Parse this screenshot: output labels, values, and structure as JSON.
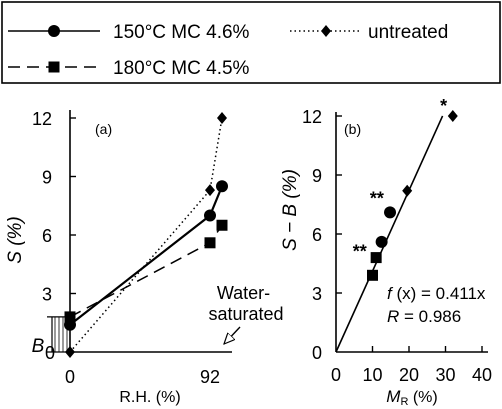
{
  "legend": {
    "items": [
      {
        "label": "150°C MC 4.6%",
        "line": "solid",
        "marker": "circle"
      },
      {
        "label": "180°C MC 4.5%",
        "line": "dashed",
        "marker": "square"
      },
      {
        "label": "untreated",
        "line": "dotted",
        "marker": "diamond"
      }
    ]
  },
  "chart_data": [
    {
      "type": "line",
      "panel_label": "(a)",
      "ylabel": "S (%)",
      "xlabel": "R.H. (%)",
      "x_ticks": [
        "0",
        "92"
      ],
      "y_ticks": [
        "0",
        "3",
        "6",
        "9",
        "12"
      ],
      "ylim": [
        0,
        12
      ],
      "grid": false,
      "series": [
        {
          "name": "150°C MC 4.6%",
          "style": "solid",
          "marker": "circle",
          "points": [
            {
              "x": "0",
              "y": 1.4
            },
            {
              "x": "92",
              "y": 7.0
            },
            {
              "x": "Water-saturated",
              "y": 8.5
            }
          ]
        },
        {
          "name": "180°C MC 4.5%",
          "style": "dashed",
          "marker": "square",
          "points": [
            {
              "x": "0",
              "y": 1.8
            },
            {
              "x": "92",
              "y": 5.6
            },
            {
              "x": "Water-saturated",
              "y": 6.5
            }
          ]
        },
        {
          "name": "untreated",
          "style": "dotted",
          "marker": "diamond",
          "points": [
            {
              "x": "0",
              "y": 0.0
            },
            {
              "x": "92",
              "y": 8.3
            },
            {
              "x": "Water-saturated",
              "y": 12.0
            }
          ]
        }
      ],
      "annotations": {
        "water_saturated": "Water-saturated",
        "b_label": "B",
        "b_range": [
          0.0,
          1.8
        ]
      }
    },
    {
      "type": "scatter",
      "panel_label": "(b)",
      "ylabel": "S − B (%)",
      "xlabel": "MR (%)",
      "xlim": [
        0,
        40
      ],
      "ylim": [
        0,
        12
      ],
      "x_ticks": [
        "0",
        "10",
        "20",
        "30",
        "40"
      ],
      "y_ticks": [
        "0",
        "3",
        "6",
        "9",
        "12"
      ],
      "grid": false,
      "series": [
        {
          "name": "150°C MC 4.6%",
          "marker": "circle",
          "points": [
            {
              "x": 12.5,
              "y": 5.6
            },
            {
              "x": 14.8,
              "y": 7.1
            }
          ]
        },
        {
          "name": "180°C MC 4.5%",
          "marker": "square",
          "points": [
            {
              "x": 10.0,
              "y": 3.9
            },
            {
              "x": 11.0,
              "y": 4.8
            }
          ]
        },
        {
          "name": "untreated",
          "marker": "diamond",
          "points": [
            {
              "x": 19.5,
              "y": 8.2
            },
            {
              "x": 32.0,
              "y": 12.0
            }
          ]
        }
      ],
      "fit": {
        "slope": 0.411,
        "x_from": 0,
        "x_to": 29.2
      },
      "fit_equation": "f (x) = 0.411x",
      "r_text": "R = 0.986",
      "marks": [
        {
          "text": "**",
          "x": 11.2,
          "y": 7.8
        },
        {
          "text": "**",
          "x": 6.5,
          "y": 5.1
        },
        {
          "text": "*",
          "x": 29.5,
          "y": 12.5
        }
      ]
    }
  ]
}
